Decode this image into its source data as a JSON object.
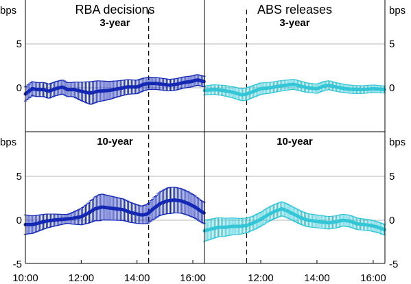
{
  "chart_data": {
    "type": "line",
    "unit_label": "bps",
    "y_ticks": [
      -5,
      0,
      5
    ],
    "x_range": [
      600,
      985
    ],
    "colors": {
      "rba": "#1428b4",
      "abs": "#34c6d6",
      "grid": "#b4b4b4",
      "frame": "#000000"
    },
    "panels": [
      {
        "id": "rba-3y",
        "row": 0,
        "col": 0,
        "title": "RBA decisions",
        "subtitle": "3-year",
        "color": "#1428b4",
        "ylim": [
          -5,
          10
        ],
        "show_y_ticks": [
          0,
          5
        ],
        "event_time": 865,
        "x_ticks": [],
        "x_tick_values": [],
        "knots": [
          [
            600,
            -0.7
          ],
          [
            615,
            -0.1
          ],
          [
            625,
            -0.2
          ],
          [
            640,
            -0.2
          ],
          [
            650,
            -0.4
          ],
          [
            665,
            -0.1
          ],
          [
            680,
            0.1
          ],
          [
            690,
            -0.2
          ],
          [
            705,
            -0.2
          ],
          [
            720,
            -0.4
          ],
          [
            740,
            -0.6
          ],
          [
            755,
            -0.4
          ],
          [
            780,
            -0.3
          ],
          [
            800,
            -0.1
          ],
          [
            820,
            0.1
          ],
          [
            840,
            0.1
          ],
          [
            855,
            0.4
          ],
          [
            865,
            0.5
          ],
          [
            880,
            0.5
          ],
          [
            895,
            0.4
          ],
          [
            910,
            0.3
          ],
          [
            925,
            0.4
          ],
          [
            940,
            0.6
          ],
          [
            955,
            0.7
          ],
          [
            970,
            0.9
          ],
          [
            985,
            0.7
          ]
        ],
        "err": [
          [
            600,
            0.8
          ],
          [
            700,
            0.8
          ],
          [
            740,
            1.3
          ],
          [
            800,
            0.9
          ],
          [
            860,
            0.7
          ],
          [
            985,
            0.6
          ]
        ]
      },
      {
        "id": "abs-3y",
        "row": 0,
        "col": 1,
        "title": "ABS releases",
        "subtitle": "3-year",
        "color": "#34c6d6",
        "ylim": [
          -5,
          10
        ],
        "show_y_ticks": [
          0,
          5
        ],
        "event_time": 690,
        "x_ticks": [],
        "x_tick_values": [],
        "knots": [
          [
            600,
            -0.3
          ],
          [
            620,
            -0.2
          ],
          [
            640,
            -0.3
          ],
          [
            660,
            -0.5
          ],
          [
            680,
            -0.8
          ],
          [
            690,
            -0.7
          ],
          [
            705,
            -0.4
          ],
          [
            720,
            -0.1
          ],
          [
            740,
            0.0
          ],
          [
            760,
            0.2
          ],
          [
            775,
            0.3
          ],
          [
            790,
            0.4
          ],
          [
            805,
            0.2
          ],
          [
            820,
            0.0
          ],
          [
            840,
            -0.1
          ],
          [
            855,
            0.2
          ],
          [
            865,
            0.3
          ],
          [
            880,
            0.1
          ],
          [
            900,
            -0.1
          ],
          [
            920,
            -0.2
          ],
          [
            940,
            -0.2
          ],
          [
            960,
            -0.1
          ],
          [
            985,
            -0.2
          ]
        ],
        "err": [
          [
            600,
            0.5
          ],
          [
            690,
            0.7
          ],
          [
            750,
            0.6
          ],
          [
            985,
            0.4
          ]
        ]
      },
      {
        "id": "rba-10y",
        "row": 1,
        "col": 0,
        "title": "",
        "subtitle": "10-year",
        "color": "#1428b4",
        "ylim": [
          -5,
          10
        ],
        "show_y_ticks": [
          -5,
          0,
          5
        ],
        "event_time": 865,
        "x_ticks": [
          "10:00",
          "12:00",
          "14:00",
          "16:00"
        ],
        "x_tick_values": [
          600,
          720,
          840,
          960
        ],
        "knots": [
          [
            600,
            -0.5
          ],
          [
            615,
            -0.5
          ],
          [
            630,
            -0.3
          ],
          [
            645,
            -0.1
          ],
          [
            660,
            0.0
          ],
          [
            680,
            0.1
          ],
          [
            700,
            0.2
          ],
          [
            720,
            0.4
          ],
          [
            735,
            0.8
          ],
          [
            750,
            1.3
          ],
          [
            765,
            1.5
          ],
          [
            780,
            1.4
          ],
          [
            795,
            1.3
          ],
          [
            810,
            1.2
          ],
          [
            825,
            0.9
          ],
          [
            840,
            0.7
          ],
          [
            850,
            0.6
          ],
          [
            862,
            0.7
          ],
          [
            875,
            1.3
          ],
          [
            890,
            1.9
          ],
          [
            905,
            2.2
          ],
          [
            920,
            2.3
          ],
          [
            935,
            2.2
          ],
          [
            950,
            1.9
          ],
          [
            965,
            1.5
          ],
          [
            978,
            1.0
          ],
          [
            985,
            0.8
          ]
        ],
        "err": [
          [
            600,
            1.1
          ],
          [
            690,
            0.5
          ],
          [
            760,
            1.5
          ],
          [
            850,
            1.0
          ],
          [
            910,
            1.5
          ],
          [
            985,
            1.2
          ]
        ]
      },
      {
        "id": "abs-10y",
        "row": 1,
        "col": 1,
        "title": "",
        "subtitle": "10-year",
        "color": "#34c6d6",
        "ylim": [
          -5,
          10
        ],
        "show_y_ticks": [
          -5,
          0,
          5
        ],
        "event_time": 690,
        "x_ticks": [
          "12:00",
          "14:00",
          "16:00"
        ],
        "x_tick_values": [
          720,
          840,
          960
        ],
        "knots": [
          [
            600,
            -1.2
          ],
          [
            615,
            -1.0
          ],
          [
            630,
            -0.8
          ],
          [
            645,
            -0.8
          ],
          [
            660,
            -0.7
          ],
          [
            675,
            -0.7
          ],
          [
            690,
            -0.6
          ],
          [
            705,
            -0.3
          ],
          [
            720,
            0.1
          ],
          [
            735,
            0.6
          ],
          [
            750,
            1.0
          ],
          [
            765,
            1.3
          ],
          [
            775,
            1.1
          ],
          [
            790,
            0.7
          ],
          [
            805,
            0.3
          ],
          [
            820,
            0.0
          ],
          [
            835,
            -0.1
          ],
          [
            850,
            -0.2
          ],
          [
            865,
            -0.3
          ],
          [
            880,
            -0.2
          ],
          [
            895,
            0.0
          ],
          [
            910,
            -0.1
          ],
          [
            925,
            -0.4
          ],
          [
            940,
            -0.5
          ],
          [
            955,
            -0.6
          ],
          [
            970,
            -0.8
          ],
          [
            985,
            -1.1
          ]
        ],
        "err": [
          [
            600,
            1.2
          ],
          [
            700,
            0.8
          ],
          [
            760,
            0.8
          ],
          [
            985,
            0.6
          ]
        ]
      }
    ]
  }
}
